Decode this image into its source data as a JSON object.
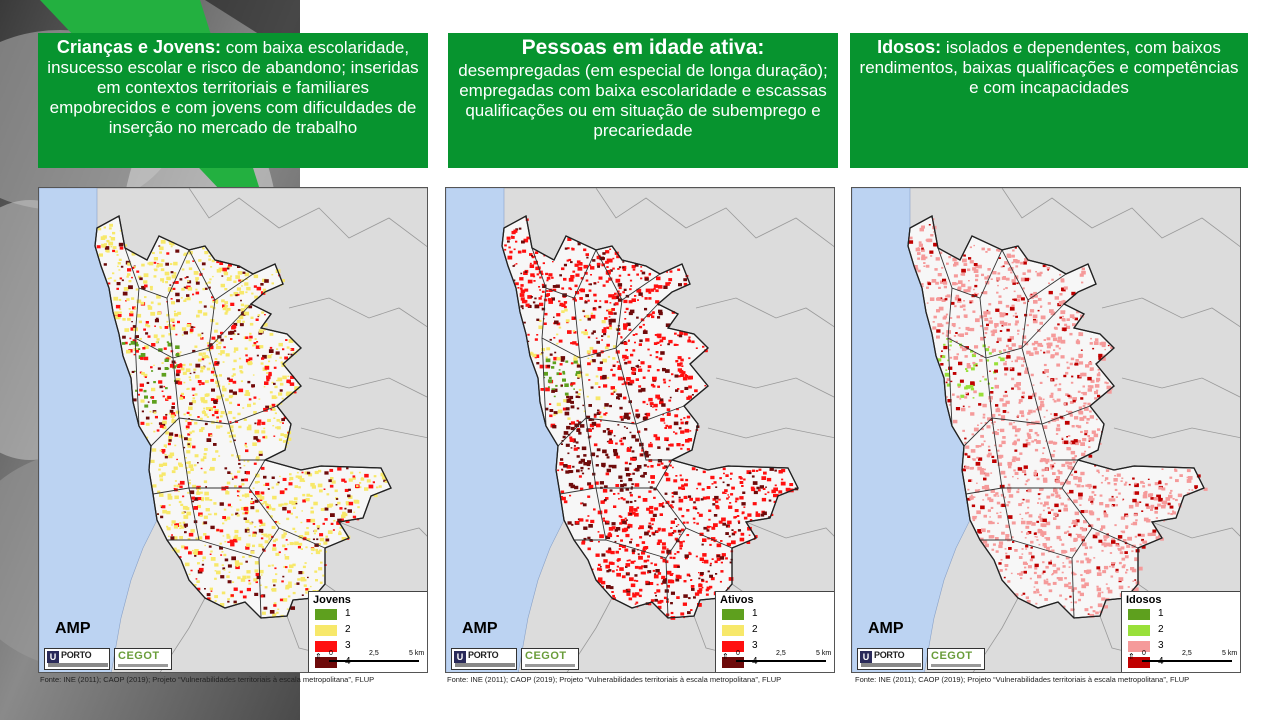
{
  "header_boxes": [
    {
      "lead": "Crianças e Jovens:",
      "text": "com baixa escolaridade, insucesso escolar e risco de abandono; inseridas em contextos territoriais e familiares empobrecidos e com jovens com dificuldades de inserção no mercado de trabalho"
    },
    {
      "lead": "Pessoas em idade ativa:",
      "text": "desempregadas (em especial de longa duração); empregadas com baixa escolaridade e escassas qualificações ou em situação de subemprego e precariedade"
    },
    {
      "lead": "Idosos:",
      "text": "isolados e dependentes, com baixos rendimentos, baixas qualificações e competências e com incapacidades"
    }
  ],
  "maps": [
    {
      "region_label": "AMP",
      "legend_title": "Jovens",
      "classes": [
        {
          "label": "1",
          "color": "#5ea01e"
        },
        {
          "label": "2",
          "color": "#f7e86a"
        },
        {
          "label": "3",
          "color": "#ff1010"
        },
        {
          "label": "4",
          "color": "#6e0a0a"
        }
      ],
      "dominant_class": "2",
      "source": "Fonte: INE (2011); CAOP (2019); Projeto “Vulnerabilidades territoriais à escala metropolitana”, FLUP"
    },
    {
      "region_label": "AMP",
      "legend_title": "Ativos",
      "classes": [
        {
          "label": "1",
          "color": "#5ea01e"
        },
        {
          "label": "2",
          "color": "#f7e86a"
        },
        {
          "label": "3",
          "color": "#ff1010"
        },
        {
          "label": "4",
          "color": "#6e0a0a"
        }
      ],
      "dominant_class": "3",
      "source": "Fonte: INE (2011); CAOP (2019); Projeto “Vulnerabilidades territoriais à escala metropolitana”, FLUP"
    },
    {
      "region_label": "AMP",
      "legend_title": "Idosos",
      "classes": [
        {
          "label": "1",
          "color": "#5ea01e"
        },
        {
          "label": "2",
          "color": "#99e03a"
        },
        {
          "label": "3",
          "color": "#f59a9a"
        },
        {
          "label": "4",
          "color": "#c00000"
        }
      ],
      "dominant_class": "3",
      "source": "Fonte: INE (2011); CAOP (2019); Projeto “Vulnerabilidades territoriais à escala metropolitana”, FLUP"
    }
  ],
  "scale_labels": [
    "0",
    "2,5",
    "5 km"
  ],
  "logos": {
    "university": "PORTO",
    "university_mark": "U",
    "centre": "CEGOT"
  },
  "colors": {
    "header_green": "#07942f",
    "sea": "#bcd3f2",
    "outside": "#dcdcdc",
    "inside": "#f7f7f7"
  }
}
